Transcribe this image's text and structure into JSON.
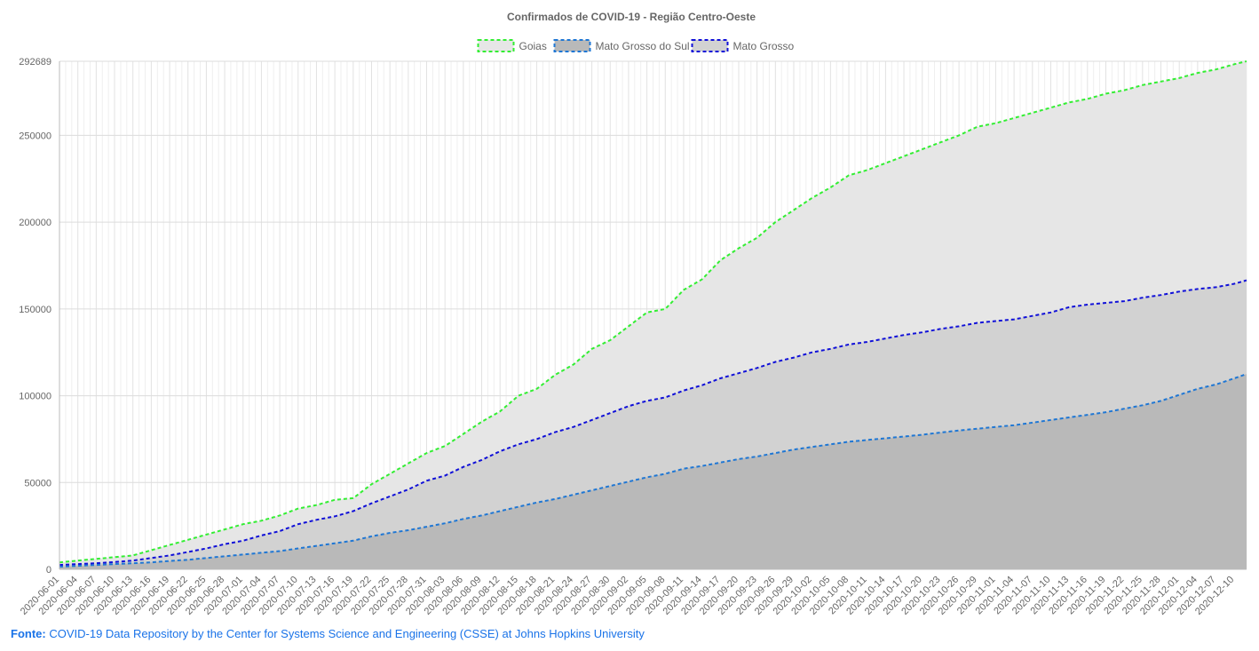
{
  "source": {
    "label": "Fonte:",
    "text": "COVID-19 Data Repository by the Center for Systems Science and Engineering (CSSE) at Johns Hopkins University"
  },
  "chart_data": {
    "type": "area",
    "title": "Confirmados de COVID-19 - Região Centro-Oeste",
    "legend_position": "top",
    "grid": true,
    "ylim": [
      0,
      292689
    ],
    "yticks": [
      0,
      50000,
      100000,
      150000,
      200000,
      250000,
      292689
    ],
    "x_start": "2020-06-01",
    "x_end": "2020-12-12",
    "x_tick_step_days": 3,
    "series": [
      {
        "name": "Goias",
        "line_color": "#33ee33",
        "fill_color": "#e6e6e6",
        "points": [
          [
            "2020-06-01",
            4000
          ],
          [
            "2020-06-04",
            5000
          ],
          [
            "2020-06-07",
            6000
          ],
          [
            "2020-06-10",
            7000
          ],
          [
            "2020-06-13",
            8000
          ],
          [
            "2020-06-16",
            11000
          ],
          [
            "2020-06-19",
            14000
          ],
          [
            "2020-06-22",
            17000
          ],
          [
            "2020-06-25",
            20000
          ],
          [
            "2020-06-28",
            23000
          ],
          [
            "2020-07-01",
            26000
          ],
          [
            "2020-07-04",
            28000
          ],
          [
            "2020-07-07",
            31000
          ],
          [
            "2020-07-10",
            35000
          ],
          [
            "2020-07-13",
            37000
          ],
          [
            "2020-07-16",
            40000
          ],
          [
            "2020-07-19",
            41000
          ],
          [
            "2020-07-22",
            49000
          ],
          [
            "2020-07-25",
            55000
          ],
          [
            "2020-07-28",
            61000
          ],
          [
            "2020-07-31",
            67000
          ],
          [
            "2020-08-03",
            71000
          ],
          [
            "2020-08-06",
            78000
          ],
          [
            "2020-08-09",
            85000
          ],
          [
            "2020-08-12",
            91000
          ],
          [
            "2020-08-15",
            100000
          ],
          [
            "2020-08-18",
            104000
          ],
          [
            "2020-08-21",
            112000
          ],
          [
            "2020-08-24",
            118000
          ],
          [
            "2020-08-27",
            127000
          ],
          [
            "2020-08-30",
            132000
          ],
          [
            "2020-09-02",
            140000
          ],
          [
            "2020-09-05",
            148000
          ],
          [
            "2020-09-08",
            150000
          ],
          [
            "2020-09-11",
            161000
          ],
          [
            "2020-09-14",
            167000
          ],
          [
            "2020-09-17",
            178000
          ],
          [
            "2020-09-20",
            185000
          ],
          [
            "2020-09-23",
            191000
          ],
          [
            "2020-09-26",
            200000
          ],
          [
            "2020-09-29",
            207000
          ],
          [
            "2020-10-02",
            214000
          ],
          [
            "2020-10-05",
            220000
          ],
          [
            "2020-10-08",
            227000
          ],
          [
            "2020-10-11",
            230000
          ],
          [
            "2020-10-14",
            234000
          ],
          [
            "2020-10-17",
            238000
          ],
          [
            "2020-10-20",
            242000
          ],
          [
            "2020-10-23",
            246000
          ],
          [
            "2020-10-26",
            250000
          ],
          [
            "2020-10-29",
            255000
          ],
          [
            "2020-11-01",
            257000
          ],
          [
            "2020-11-04",
            260000
          ],
          [
            "2020-11-07",
            263000
          ],
          [
            "2020-11-10",
            266000
          ],
          [
            "2020-11-13",
            269000
          ],
          [
            "2020-11-16",
            271000
          ],
          [
            "2020-11-19",
            274000
          ],
          [
            "2020-11-22",
            276000
          ],
          [
            "2020-11-25",
            279000
          ],
          [
            "2020-11-28",
            281000
          ],
          [
            "2020-12-01",
            283000
          ],
          [
            "2020-12-04",
            286000
          ],
          [
            "2020-12-07",
            288000
          ],
          [
            "2020-12-10",
            291000
          ],
          [
            "2020-12-12",
            292689
          ]
        ]
      },
      {
        "name": "Mato Grosso do Sul",
        "line_color": "#1f77d4",
        "fill_color": "#b9b9b9",
        "points": [
          [
            "2020-06-01",
            1500
          ],
          [
            "2020-06-04",
            2000
          ],
          [
            "2020-06-07",
            2500
          ],
          [
            "2020-06-10",
            3000
          ],
          [
            "2020-06-13",
            3500
          ],
          [
            "2020-06-16",
            4000
          ],
          [
            "2020-06-19",
            4800
          ],
          [
            "2020-06-22",
            5500
          ],
          [
            "2020-06-25",
            6500
          ],
          [
            "2020-06-28",
            7500
          ],
          [
            "2020-07-01",
            8500
          ],
          [
            "2020-07-04",
            9500
          ],
          [
            "2020-07-07",
            10500
          ],
          [
            "2020-07-10",
            12000
          ],
          [
            "2020-07-13",
            13500
          ],
          [
            "2020-07-16",
            15000
          ],
          [
            "2020-07-19",
            16500
          ],
          [
            "2020-07-22",
            19000
          ],
          [
            "2020-07-25",
            21000
          ],
          [
            "2020-07-28",
            22500
          ],
          [
            "2020-07-31",
            24500
          ],
          [
            "2020-08-03",
            26500
          ],
          [
            "2020-08-06",
            29000
          ],
          [
            "2020-08-09",
            31000
          ],
          [
            "2020-08-12",
            33500
          ],
          [
            "2020-08-15",
            36000
          ],
          [
            "2020-08-18",
            38500
          ],
          [
            "2020-08-21",
            40500
          ],
          [
            "2020-08-24",
            43000
          ],
          [
            "2020-08-27",
            45500
          ],
          [
            "2020-08-30",
            48000
          ],
          [
            "2020-09-02",
            50500
          ],
          [
            "2020-09-05",
            53000
          ],
          [
            "2020-09-08",
            55000
          ],
          [
            "2020-09-11",
            58000
          ],
          [
            "2020-09-14",
            59500
          ],
          [
            "2020-09-17",
            61500
          ],
          [
            "2020-09-20",
            63500
          ],
          [
            "2020-09-23",
            65000
          ],
          [
            "2020-09-26",
            67000
          ],
          [
            "2020-09-29",
            69000
          ],
          [
            "2020-10-02",
            70500
          ],
          [
            "2020-10-05",
            72000
          ],
          [
            "2020-10-08",
            73500
          ],
          [
            "2020-10-11",
            74500
          ],
          [
            "2020-10-14",
            75500
          ],
          [
            "2020-10-17",
            76500
          ],
          [
            "2020-10-20",
            77500
          ],
          [
            "2020-10-23",
            78800
          ],
          [
            "2020-10-26",
            80000
          ],
          [
            "2020-10-29",
            81000
          ],
          [
            "2020-11-01",
            82000
          ],
          [
            "2020-11-04",
            83000
          ],
          [
            "2020-11-07",
            84500
          ],
          [
            "2020-11-10",
            86000
          ],
          [
            "2020-11-13",
            87500
          ],
          [
            "2020-11-16",
            89000
          ],
          [
            "2020-11-19",
            90500
          ],
          [
            "2020-11-22",
            92500
          ],
          [
            "2020-11-25",
            94500
          ],
          [
            "2020-11-28",
            97000
          ],
          [
            "2020-12-01",
            100500
          ],
          [
            "2020-12-04",
            104000
          ],
          [
            "2020-12-07",
            106500
          ],
          [
            "2020-12-10",
            110000
          ],
          [
            "2020-12-12",
            112500
          ]
        ]
      },
      {
        "name": "Mato Grosso",
        "line_color": "#1010d8",
        "fill_color": "#d2d2d2",
        "points": [
          [
            "2020-06-01",
            2500
          ],
          [
            "2020-06-04",
            3000
          ],
          [
            "2020-06-07",
            3500
          ],
          [
            "2020-06-10",
            4200
          ],
          [
            "2020-06-13",
            5000
          ],
          [
            "2020-06-16",
            6500
          ],
          [
            "2020-06-19",
            8000
          ],
          [
            "2020-06-22",
            10000
          ],
          [
            "2020-06-25",
            12000
          ],
          [
            "2020-06-28",
            14500
          ],
          [
            "2020-07-01",
            16500
          ],
          [
            "2020-07-04",
            19500
          ],
          [
            "2020-07-07",
            22000
          ],
          [
            "2020-07-10",
            26000
          ],
          [
            "2020-07-13",
            28500
          ],
          [
            "2020-07-16",
            30500
          ],
          [
            "2020-07-19",
            33500
          ],
          [
            "2020-07-22",
            38000
          ],
          [
            "2020-07-25",
            42000
          ],
          [
            "2020-07-28",
            46000
          ],
          [
            "2020-07-31",
            51000
          ],
          [
            "2020-08-03",
            54000
          ],
          [
            "2020-08-06",
            59000
          ],
          [
            "2020-08-09",
            63000
          ],
          [
            "2020-08-12",
            68000
          ],
          [
            "2020-08-15",
            72000
          ],
          [
            "2020-08-18",
            75000
          ],
          [
            "2020-08-21",
            79000
          ],
          [
            "2020-08-24",
            82000
          ],
          [
            "2020-08-27",
            86000
          ],
          [
            "2020-08-30",
            90000
          ],
          [
            "2020-09-02",
            94000
          ],
          [
            "2020-09-05",
            97000
          ],
          [
            "2020-09-08",
            99000
          ],
          [
            "2020-09-11",
            103000
          ],
          [
            "2020-09-14",
            106000
          ],
          [
            "2020-09-17",
            110000
          ],
          [
            "2020-09-20",
            113000
          ],
          [
            "2020-09-23",
            116000
          ],
          [
            "2020-09-26",
            119500
          ],
          [
            "2020-09-29",
            122000
          ],
          [
            "2020-10-02",
            125000
          ],
          [
            "2020-10-05",
            127000
          ],
          [
            "2020-10-08",
            129500
          ],
          [
            "2020-10-11",
            131000
          ],
          [
            "2020-10-14",
            133000
          ],
          [
            "2020-10-17",
            135000
          ],
          [
            "2020-10-20",
            136500
          ],
          [
            "2020-10-23",
            138500
          ],
          [
            "2020-10-26",
            140000
          ],
          [
            "2020-10-29",
            142000
          ],
          [
            "2020-11-01",
            143000
          ],
          [
            "2020-11-04",
            144000
          ],
          [
            "2020-11-07",
            146000
          ],
          [
            "2020-11-10",
            148000
          ],
          [
            "2020-11-13",
            151000
          ],
          [
            "2020-11-16",
            152500
          ],
          [
            "2020-11-19",
            153500
          ],
          [
            "2020-11-22",
            154500
          ],
          [
            "2020-11-25",
            156500
          ],
          [
            "2020-11-28",
            158000
          ],
          [
            "2020-12-01",
            160000
          ],
          [
            "2020-12-04",
            161500
          ],
          [
            "2020-12-07",
            162500
          ],
          [
            "2020-12-10",
            164500
          ],
          [
            "2020-12-12",
            166500
          ]
        ]
      }
    ]
  }
}
